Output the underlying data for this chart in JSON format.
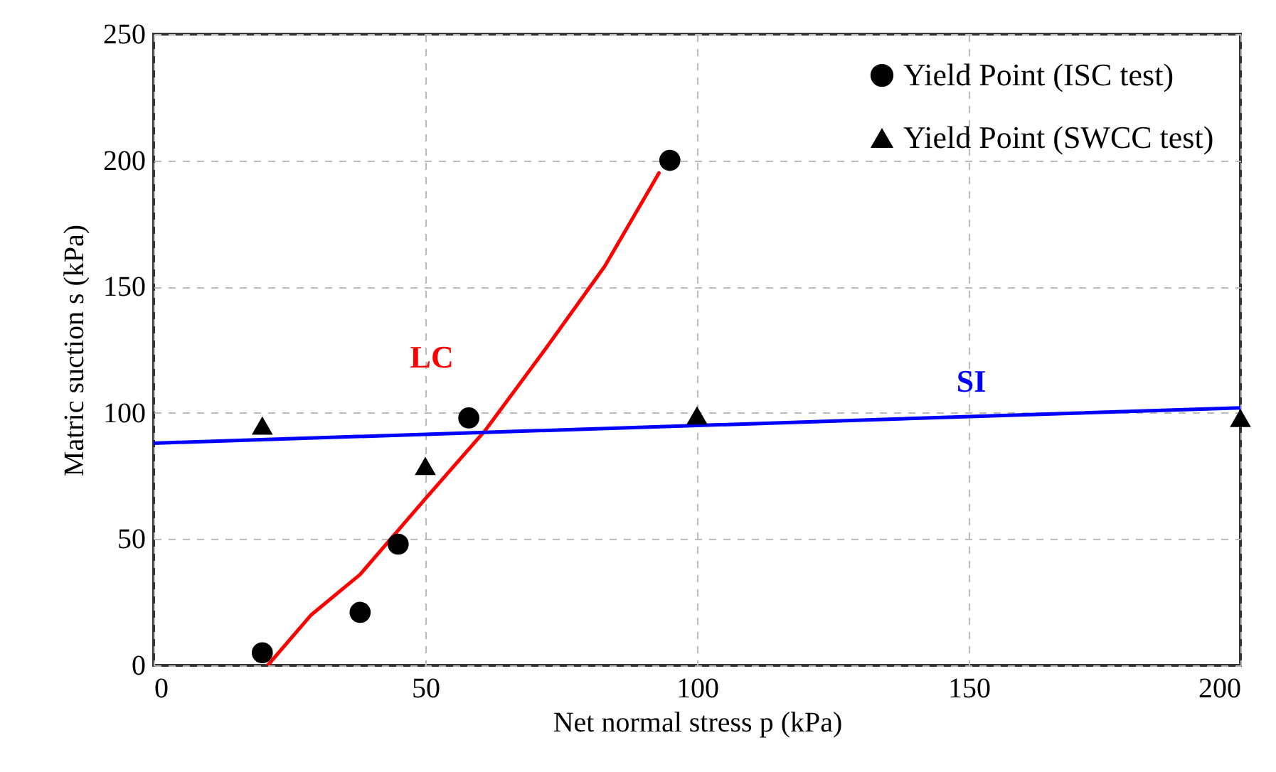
{
  "chart_data": {
    "type": "scatter",
    "xlabel": "Net normal stress  p  (kPa)",
    "ylabel": "Matric suction  s  (kPa)",
    "xlim": [
      0,
      200
    ],
    "ylim": [
      0,
      250
    ],
    "xticks": [
      0,
      50,
      100,
      150,
      200
    ],
    "yticks": [
      0,
      50,
      100,
      150,
      200,
      250
    ],
    "grid": true,
    "legend": "top right",
    "series": [
      {
        "name": "Yield Point (ISC test)",
        "marker": "circle",
        "color": "#000000",
        "x": [
          20,
          38,
          45,
          58,
          95
        ],
        "values": [
          5,
          21,
          48,
          98,
          200
        ]
      },
      {
        "name": "Yield Point (SWCC test)",
        "marker": "triangle",
        "color": "#000000",
        "x": [
          20,
          50,
          100,
          200
        ],
        "values": [
          95,
          79,
          99,
          98
        ]
      },
      {
        "name": "LC",
        "type": "line",
        "marker": "none",
        "color": "#ff0000",
        "x": [
          21,
          29,
          38,
          50,
          61,
          72,
          83,
          93
        ],
        "values": [
          0,
          20,
          36,
          66,
          93,
          125,
          158,
          195
        ]
      },
      {
        "name": "SI",
        "type": "line",
        "marker": "none",
        "color": "#0000ff",
        "x": [
          0,
          200
        ],
        "values": [
          88,
          102
        ]
      }
    ]
  }
}
